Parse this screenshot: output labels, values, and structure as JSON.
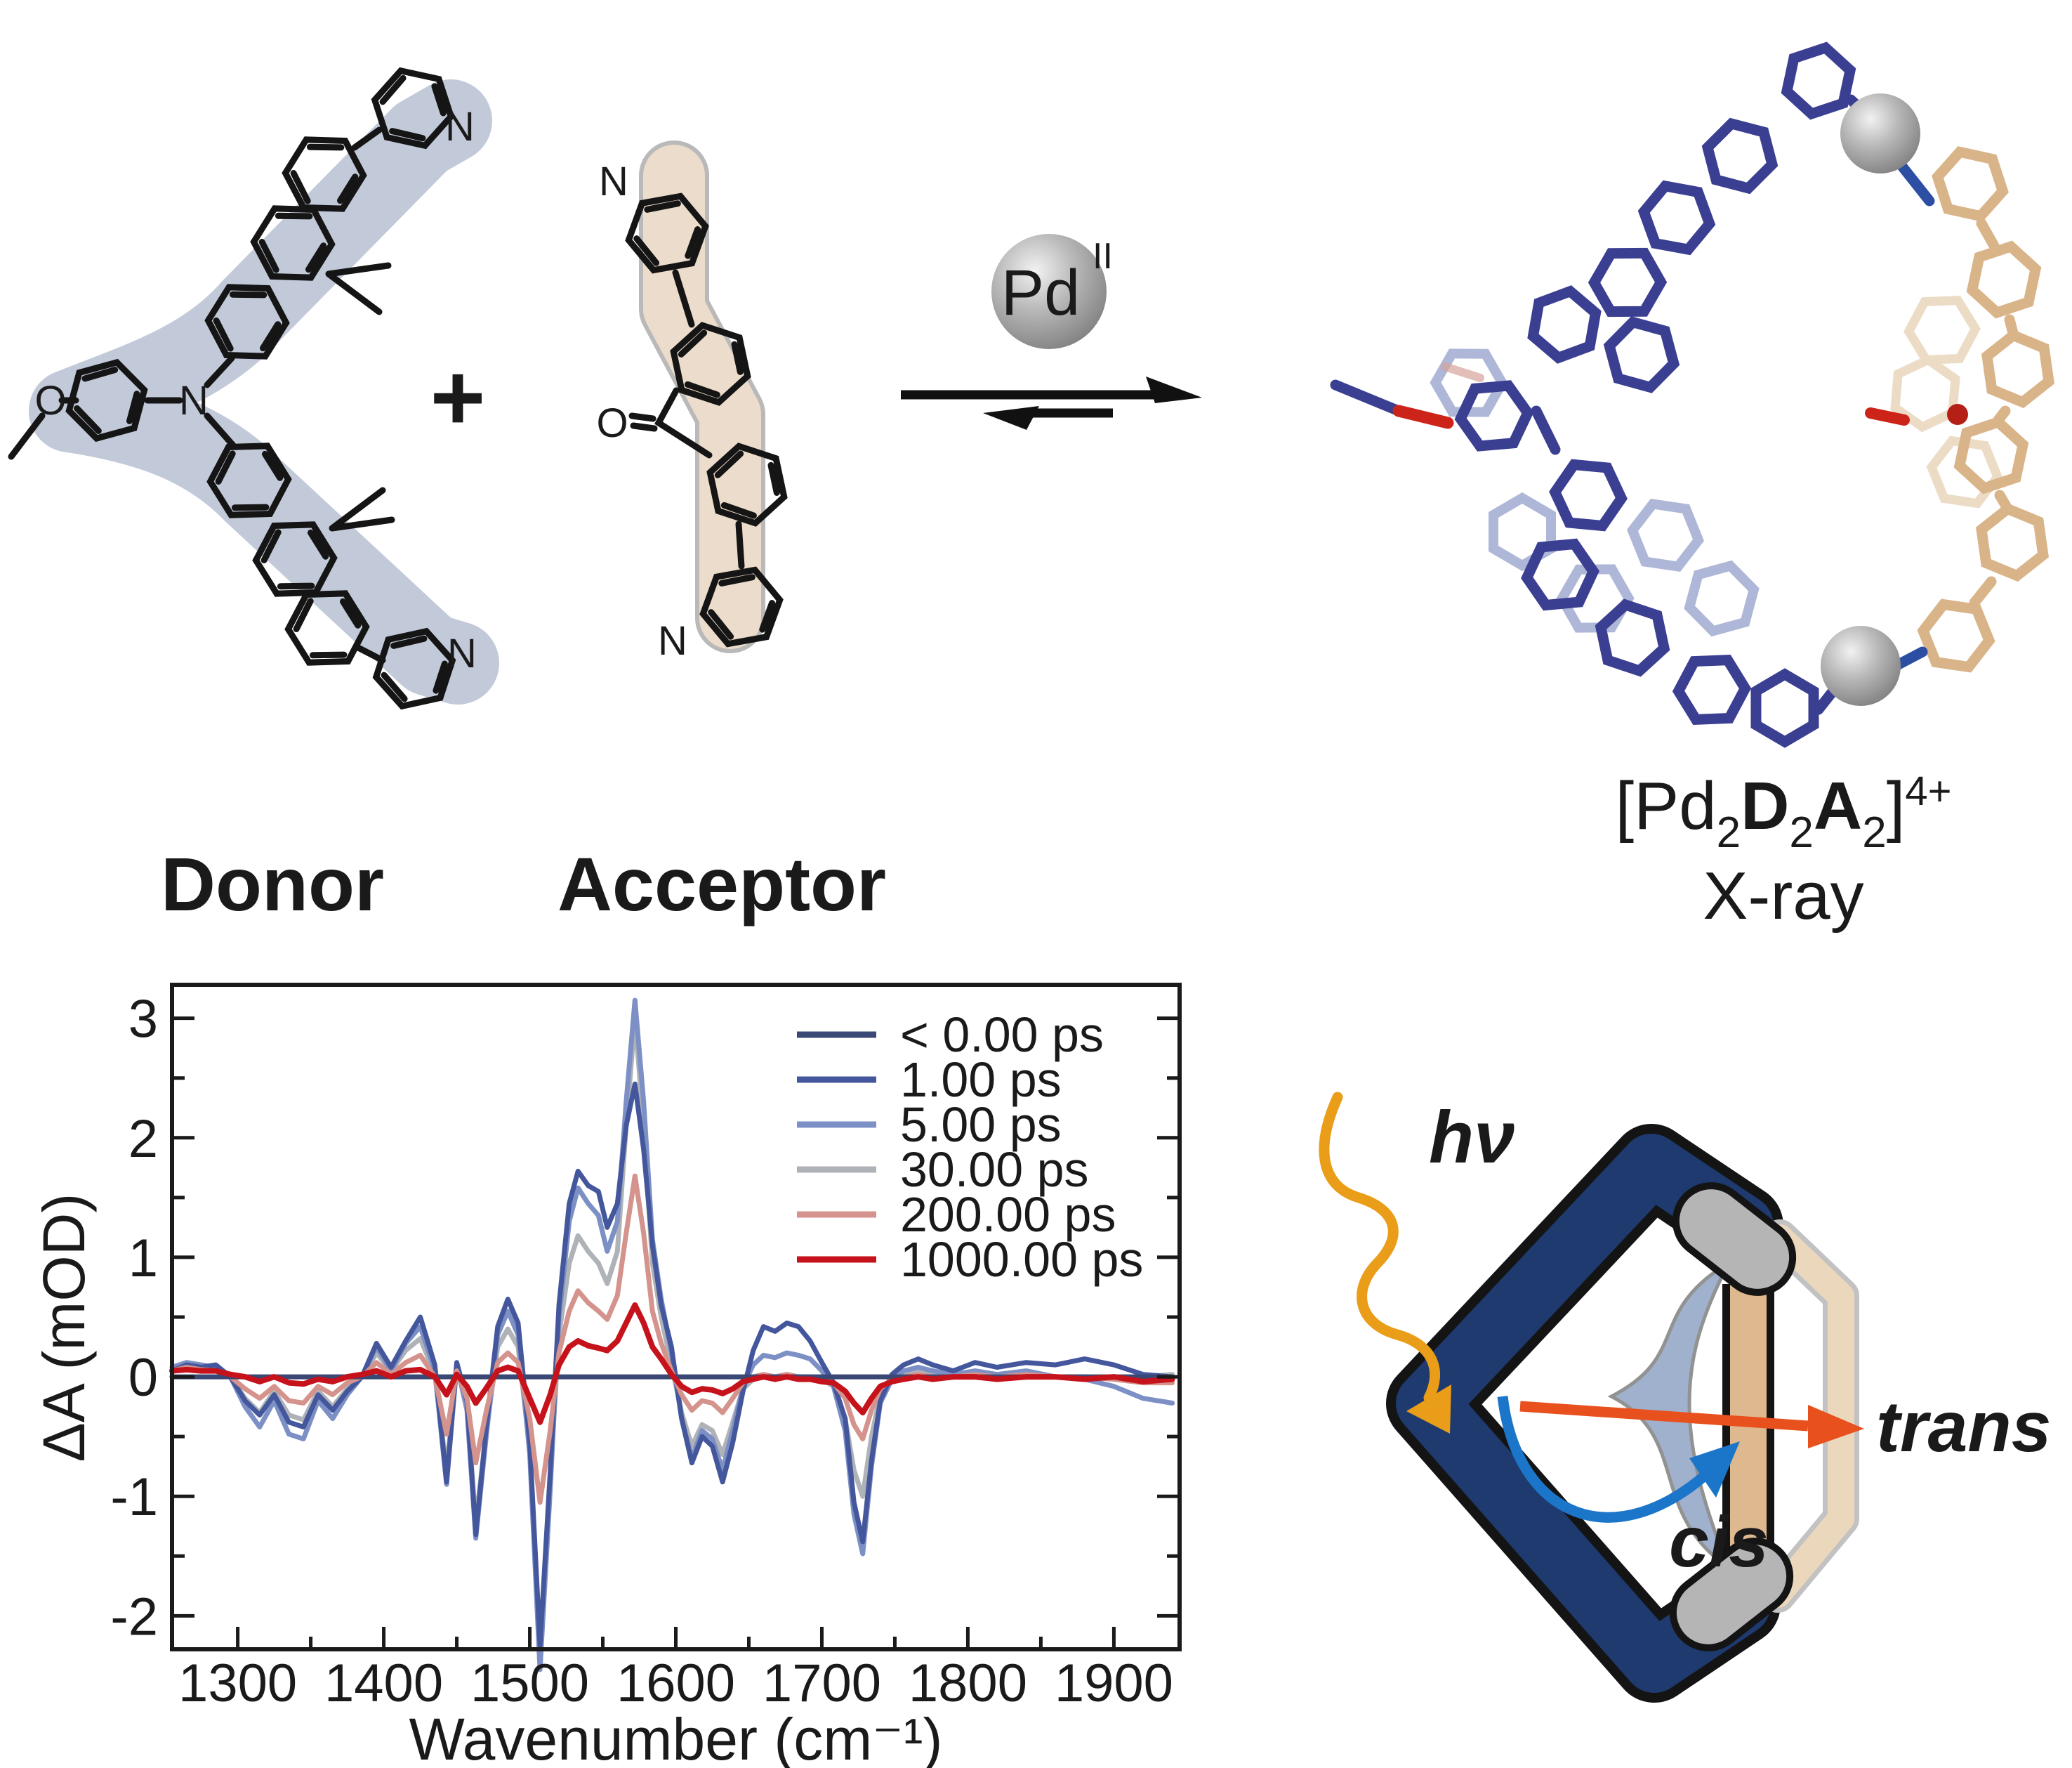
{
  "scheme": {
    "plus_sign": "+",
    "pd_label": "Pd",
    "pd_oxidation": "II",
    "donor_label": "Donor",
    "donor_color": "#3D4C9C",
    "acceptor_label": "Acceptor",
    "acceptor_color": "#BD9372",
    "formula": {
      "open": "[Pd",
      "n1": "2",
      "d": "D",
      "n2": "2",
      "a": "A",
      "n3": "2",
      "close": "]",
      "charge": "4+"
    },
    "formula_caption": "X-ray",
    "donor_atoms": {
      "o": "O",
      "n": "N",
      "n_top": "N",
      "n_bottom": "N"
    },
    "acceptor_atoms": {
      "n_top": "N",
      "o": "O",
      "n_bottom": "N"
    }
  },
  "cartoon": {
    "hv": "hν",
    "hv_color": "#EA9D18",
    "cis": "cis",
    "cis_color": "#1B75C8",
    "trans": "trans",
    "trans_color": "#E8511D"
  },
  "chart_data": {
    "type": "line",
    "title": "",
    "xlabel": "Wavenumber (cm⁻¹)",
    "ylabel": "ΔA (mOD)",
    "xlim": [
      1255,
      1945
    ],
    "ylim": [
      -2.28,
      3.28
    ],
    "xticks": [
      1300,
      1400,
      1500,
      1600,
      1700,
      1800,
      1900
    ],
    "xticks_minor": [
      1350,
      1450,
      1550,
      1650,
      1750,
      1850
    ],
    "yticks": [
      -2,
      -1,
      0,
      1,
      2,
      3
    ],
    "yticks_minor": [
      -1.5,
      -0.5,
      0.5,
      1.5,
      2.5
    ],
    "grid": false,
    "zero_line": true,
    "legend_position": "top-right-inside",
    "x": [
      1255,
      1265,
      1275,
      1285,
      1295,
      1305,
      1315,
      1325,
      1335,
      1345,
      1355,
      1365,
      1375,
      1385,
      1395,
      1405,
      1415,
      1425,
      1435,
      1443,
      1450,
      1457,
      1463,
      1470,
      1478,
      1485,
      1492,
      1500,
      1507,
      1514,
      1520,
      1527,
      1533,
      1540,
      1547,
      1553,
      1560,
      1566,
      1572,
      1578,
      1584,
      1590,
      1597,
      1604,
      1611,
      1618,
      1625,
      1632,
      1639,
      1646,
      1653,
      1660,
      1668,
      1676,
      1684,
      1692,
      1700,
      1708,
      1716,
      1722,
      1728,
      1734,
      1740,
      1748,
      1756,
      1766,
      1776,
      1790,
      1805,
      1820,
      1840,
      1860,
      1880,
      1900,
      1920,
      1940
    ],
    "series": [
      {
        "name": "< 0.00 ps",
        "color": "#3A4875",
        "width": 7,
        "z": 5,
        "values": [
          0,
          0,
          0,
          0,
          0,
          0,
          0,
          0,
          0,
          0,
          0,
          0,
          0,
          0,
          0,
          0,
          0,
          0,
          0,
          0,
          0,
          0,
          0,
          0,
          0,
          0,
          0,
          0,
          0,
          0,
          0,
          0,
          0,
          0,
          0,
          0,
          0,
          0,
          0,
          0,
          0,
          0,
          0,
          0,
          0,
          0,
          0,
          0,
          0,
          0,
          0,
          0,
          0,
          0,
          0,
          0,
          0,
          0,
          0,
          0,
          0,
          0,
          0,
          0,
          0,
          0,
          0,
          0,
          0,
          0,
          0,
          0,
          0,
          0,
          0,
          0
        ]
      },
      {
        "name": "1.00 ps",
        "color": "#44579D",
        "width": 7,
        "z": 3,
        "values": [
          0.05,
          0.1,
          0.08,
          0.1,
          0,
          -0.2,
          -0.32,
          -0.15,
          -0.38,
          -0.42,
          -0.15,
          -0.28,
          -0.12,
          0,
          0.28,
          0.08,
          0.3,
          0.5,
          0.1,
          -0.88,
          0.12,
          -0.2,
          -1.32,
          -0.45,
          0.42,
          0.65,
          0.45,
          -0.55,
          -2.25,
          -0.8,
          0.6,
          1.45,
          1.72,
          1.6,
          1.55,
          1.25,
          1.45,
          2.1,
          2.45,
          1.9,
          1.1,
          0.6,
          0.25,
          -0.35,
          -0.72,
          -0.5,
          -0.58,
          -0.88,
          -0.55,
          -0.12,
          0.22,
          0.42,
          0.38,
          0.45,
          0.42,
          0.3,
          0.12,
          -0.05,
          -0.35,
          -1.05,
          -1.38,
          -0.7,
          -0.2,
          0.02,
          0.1,
          0.15,
          0.1,
          0.05,
          0.12,
          0.08,
          0.12,
          0.1,
          0.15,
          0.1,
          0.02,
          0
        ]
      },
      {
        "name": "5.00 ps",
        "color": "#7D90C5",
        "width": 7,
        "z": 2,
        "values": [
          0.08,
          0.12,
          0.1,
          0.08,
          0,
          -0.25,
          -0.42,
          -0.2,
          -0.48,
          -0.52,
          -0.2,
          -0.35,
          -0.15,
          0,
          0.25,
          0.05,
          0.28,
          0.42,
          0.05,
          -0.9,
          0.1,
          -0.28,
          -1.35,
          -0.52,
          0.35,
          0.55,
          0.35,
          -0.65,
          -2.45,
          -0.95,
          0.5,
          1.3,
          1.58,
          1.45,
          1.35,
          1.05,
          1.3,
          2.3,
          3.15,
          2.3,
          1.15,
          0.65,
          0.2,
          -0.35,
          -0.68,
          -0.45,
          -0.52,
          -0.78,
          -0.45,
          -0.08,
          0.1,
          0.18,
          0.16,
          0.2,
          0.18,
          0.15,
          0.05,
          -0.08,
          -0.45,
          -1.15,
          -1.48,
          -0.75,
          -0.22,
          -0.02,
          0.05,
          0.08,
          0.05,
          0.02,
          0.05,
          0.02,
          0.05,
          0,
          -0.02,
          -0.08,
          -0.18,
          -0.22
        ]
      },
      {
        "name": "30.00 ps",
        "color": "#AFB3B7",
        "width": 7,
        "z": 1,
        "values": [
          0.06,
          0.1,
          0.08,
          0.06,
          0,
          -0.18,
          -0.3,
          -0.12,
          -0.32,
          -0.36,
          -0.12,
          -0.25,
          -0.1,
          0,
          0.2,
          0.05,
          0.22,
          0.32,
          0.02,
          -0.78,
          0.08,
          -0.25,
          -1.22,
          -0.48,
          0.25,
          0.4,
          0.25,
          -0.6,
          -2.35,
          -0.85,
          0.35,
          0.95,
          1.18,
          1.05,
          0.95,
          0.78,
          1.05,
          2.1,
          3.0,
          2.1,
          0.95,
          0.5,
          0.1,
          -0.3,
          -0.58,
          -0.4,
          -0.45,
          -0.65,
          -0.38,
          -0.1,
          -0.02,
          0,
          0,
          0.02,
          0,
          0,
          -0.02,
          -0.08,
          -0.35,
          -0.78,
          -1.0,
          -0.5,
          -0.15,
          -0.02,
          0.02,
          0.05,
          0.02,
          0,
          0.02,
          0,
          0.02,
          0,
          0,
          -0.02,
          0,
          0.02
        ]
      },
      {
        "name": "200.00 ps",
        "color": "#D4938C",
        "width": 7,
        "z": 4,
        "values": [
          0.05,
          0.08,
          0.06,
          0.05,
          0,
          -0.1,
          -0.18,
          -0.08,
          -0.2,
          -0.22,
          -0.08,
          -0.15,
          -0.05,
          0,
          0.12,
          0.02,
          0.12,
          0.18,
          0,
          -0.48,
          0.05,
          -0.18,
          -0.72,
          -0.3,
          0.12,
          0.2,
          0.12,
          -0.35,
          -1.05,
          -0.45,
          0.2,
          0.55,
          0.72,
          0.62,
          0.55,
          0.48,
          0.68,
          1.2,
          1.68,
          1.2,
          0.55,
          0.28,
          0.05,
          -0.15,
          -0.28,
          -0.2,
          -0.22,
          -0.3,
          -0.18,
          -0.05,
          0,
          0.02,
          0,
          0.02,
          0,
          0,
          -0.02,
          -0.05,
          -0.18,
          -0.4,
          -0.52,
          -0.28,
          -0.1,
          -0.02,
          0,
          0.02,
          0,
          0,
          0.02,
          0,
          0.02,
          0,
          0,
          -0.02,
          -0.05,
          -0.05
        ]
      },
      {
        "name": "1000.00 ps",
        "color": "#C5121B",
        "width": 8,
        "z": 6,
        "values": [
          0.05,
          0.06,
          0.05,
          0.05,
          0.02,
          0,
          -0.04,
          0,
          -0.05,
          -0.06,
          -0.02,
          -0.04,
          0,
          0.02,
          0.05,
          0,
          0.05,
          0.06,
          0,
          -0.15,
          0.02,
          -0.08,
          -0.22,
          -0.1,
          0.05,
          0.08,
          0.05,
          -0.18,
          -0.38,
          -0.15,
          0.1,
          0.25,
          0.3,
          0.26,
          0.24,
          0.22,
          0.3,
          0.45,
          0.6,
          0.45,
          0.25,
          0.15,
          0.02,
          -0.08,
          -0.13,
          -0.1,
          -0.11,
          -0.14,
          -0.1,
          -0.04,
          -0.02,
          0,
          -0.02,
          0,
          -0.02,
          -0.02,
          -0.04,
          -0.05,
          -0.12,
          -0.22,
          -0.3,
          -0.18,
          -0.08,
          -0.04,
          -0.02,
          0,
          -0.02,
          0,
          0,
          -0.02,
          0,
          0,
          -0.02,
          0,
          -0.04,
          -0.02
        ]
      }
    ]
  }
}
